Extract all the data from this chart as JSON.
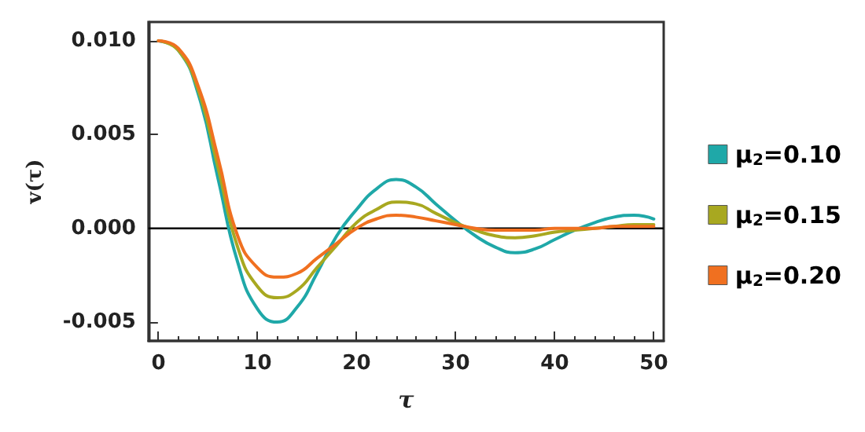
{
  "chart_data": {
    "type": "line",
    "xlabel": "τ",
    "ylabel": "v(τ)",
    "xlim": [
      -1,
      51
    ],
    "xticks": [
      0,
      10,
      20,
      30,
      40,
      50
    ],
    "ylim": [
      -0.006,
      0.011
    ],
    "yticks": [
      {
        "value": -0.005,
        "label": "-0.005"
      },
      {
        "value": 0,
        "label": "0.000"
      },
      {
        "value": 0.005,
        "label": "0.005"
      },
      {
        "value": 0.01,
        "label": "0.010"
      }
    ],
    "x": [
      0,
      2,
      4,
      6,
      8,
      10,
      12,
      14,
      16,
      18,
      20,
      22,
      24,
      26,
      28,
      30,
      32,
      34,
      36,
      38,
      40,
      42,
      44,
      46,
      48,
      50
    ],
    "series": [
      {
        "name": "μ$_{2}$=0.10",
        "color": "#1fa8a8",
        "values": [
          0.01,
          0.0095,
          0.0072,
          0.0027,
          -0.0018,
          -0.0043,
          -0.005,
          -0.0042,
          -0.0024,
          -0.0004,
          0.001,
          0.0021,
          0.0026,
          0.0022,
          0.0013,
          0.0004,
          -0.0004,
          -0.001,
          -0.0013,
          -0.0011,
          -0.0006,
          -0.0001,
          0.0003,
          0.0006,
          0.0007,
          0.0005
        ]
      },
      {
        "name": "μ$_{2}$=0.15",
        "color": "#a8a820",
        "values": [
          0.01,
          0.0095,
          0.0074,
          0.0033,
          -0.001,
          -0.0031,
          -0.0037,
          -0.0033,
          -0.0021,
          -0.0009,
          0.0003,
          0.001,
          0.0014,
          0.0013,
          0.0008,
          0.0003,
          -0.0001,
          -0.0004,
          -0.0005,
          -0.0004,
          -0.0002,
          -0.0001,
          0,
          0.0001,
          0.0002,
          0.0002
        ]
      },
      {
        "name": "μ$_{2}$=0.20",
        "color": "#f07020",
        "values": [
          0.01,
          0.0096,
          0.0076,
          0.0038,
          -0.0004,
          -0.0021,
          -0.0026,
          -0.0024,
          -0.0016,
          -0.0008,
          0,
          0.0005,
          0.0007,
          0.0006,
          0.0004,
          0.0002,
          0,
          -0.0001,
          -0.0001,
          -0.0001,
          0,
          0,
          0,
          0.0001,
          0.0001,
          0.0001
        ]
      }
    ],
    "ref_lines": [
      {
        "axis": "y",
        "value": 0,
        "color": "#000000"
      }
    ],
    "legend": "right",
    "marker": "none",
    "line_style": "solid",
    "grid": false
  }
}
